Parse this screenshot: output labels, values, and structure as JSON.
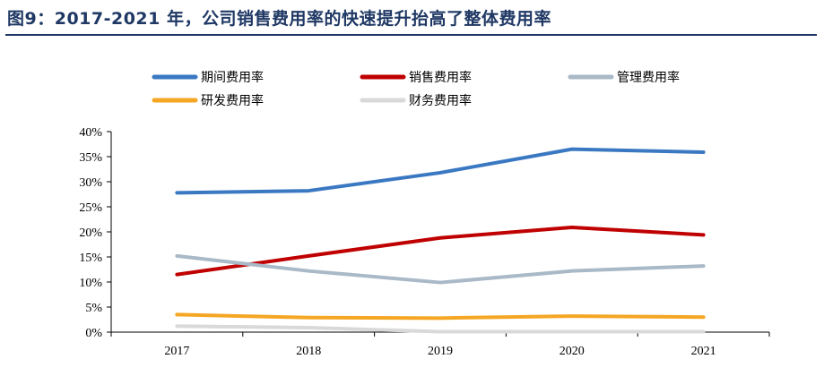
{
  "title": "图9：2017-2021 年，公司销售费用率的快速提升抬高了整体费用率",
  "chart_data": {
    "type": "line",
    "categories": [
      "2017",
      "2018",
      "2019",
      "2020",
      "2021"
    ],
    "ylim": [
      0,
      40
    ],
    "yticks": [
      "0%",
      "5%",
      "10%",
      "15%",
      "20%",
      "25%",
      "30%",
      "35%",
      "40%"
    ],
    "xlabel": "",
    "ylabel": "",
    "legend_position": "top",
    "series": [
      {
        "name": "期间费用率",
        "color": "#3a78c2",
        "values": [
          27.8,
          28.2,
          31.8,
          36.5,
          35.9
        ]
      },
      {
        "name": "销售费用率",
        "color": "#c00000",
        "values": [
          11.5,
          15.2,
          18.8,
          20.9,
          19.4
        ]
      },
      {
        "name": "管理费用率",
        "color": "#a9b9c7",
        "values": [
          15.2,
          12.2,
          9.9,
          12.2,
          13.2
        ]
      },
      {
        "name": "研发费用率",
        "color": "#f5a623",
        "values": [
          3.5,
          2.9,
          2.8,
          3.2,
          3.0
        ]
      },
      {
        "name": "财务费用率",
        "color": "#d9d9d9",
        "values": [
          1.2,
          0.9,
          0.1,
          0.1,
          0.1
        ]
      }
    ]
  }
}
